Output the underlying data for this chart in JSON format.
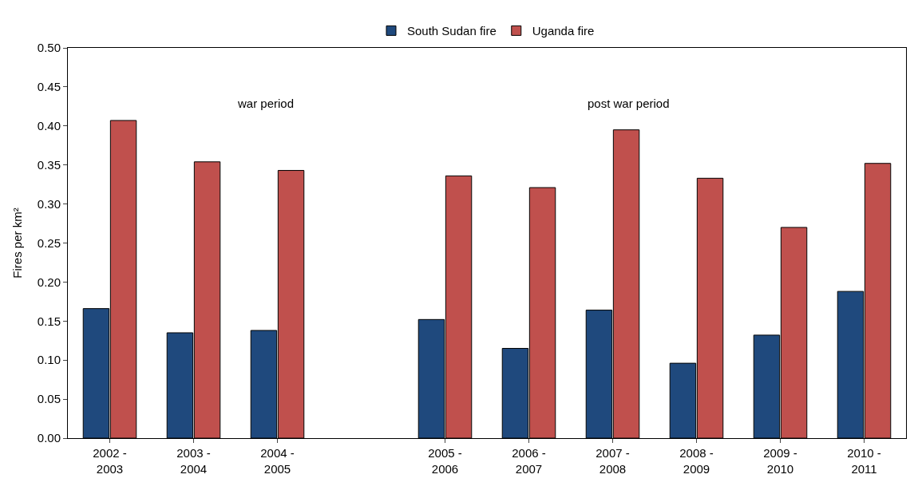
{
  "chart_data": {
    "type": "bar",
    "categories": [
      "2002 -\n2003",
      "2003 -\n2004",
      "2004 -\n2005",
      null,
      "2005 -\n2006",
      "2006 -\n2007",
      "2007 -\n2008",
      "2008 -\n2009",
      "2009 -\n2010",
      "2010 -\n2011"
    ],
    "series": [
      {
        "name": "South Sudan fire",
        "color": "#1f497d",
        "values": [
          0.166,
          0.135,
          0.138,
          null,
          0.152,
          0.115,
          0.164,
          0.096,
          0.132,
          0.188
        ]
      },
      {
        "name": "Uganda fire",
        "color": "#c0504d",
        "values": [
          0.407,
          0.354,
          0.343,
          null,
          0.336,
          0.321,
          0.395,
          0.333,
          0.27,
          0.352
        ]
      }
    ],
    "ylabel": "Fires per km²",
    "ylim": [
      0,
      0.5
    ],
    "yticks": [
      {
        "value": 0,
        "label": "0.00"
      },
      {
        "value": 0.05,
        "label": "0.05"
      },
      {
        "value": 0.1,
        "label": "0.10"
      },
      {
        "value": 0.15,
        "label": "0.15"
      },
      {
        "value": 0.2,
        "label": "0.20"
      },
      {
        "value": 0.25,
        "label": "0.25"
      },
      {
        "value": 0.3,
        "label": "0.30"
      },
      {
        "value": 0.35,
        "label": "0.35"
      },
      {
        "value": 0.4,
        "label": "0.40"
      },
      {
        "value": 0.45,
        "label": "0.45"
      },
      {
        "value": 0.5,
        "label": "0.50"
      }
    ],
    "annotations": [
      "war period",
      "post war period"
    ],
    "legend": "top"
  }
}
